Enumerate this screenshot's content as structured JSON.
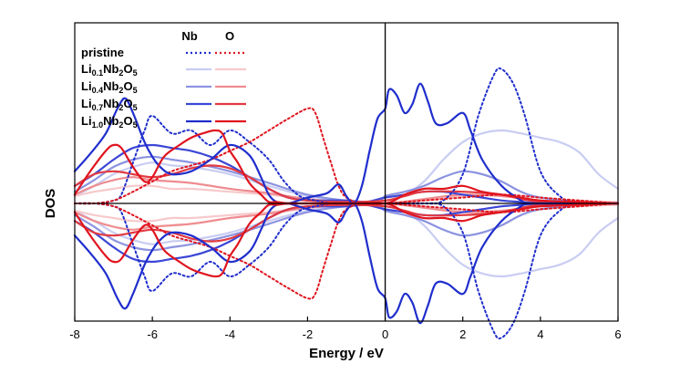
{
  "chart_data": {
    "type": "line",
    "xlabel": "Energy / eV",
    "ylabel": "DOS",
    "xlim": [
      -8,
      6
    ],
    "ylim": [
      -1.0,
      1.0
    ],
    "x_ticks": [
      "-8",
      "-6",
      "-4",
      "-2",
      "0",
      "2",
      "4",
      "6"
    ],
    "fermi_level": 0,
    "mirrored": "upper half = spin up, lower half = mirror image",
    "legend": {
      "column_headers": [
        "Nb",
        "O"
      ],
      "rows": [
        {
          "label_parts": [
            "pristine"
          ],
          "nb_style": "dotted",
          "o_style": "dotted"
        },
        {
          "label_parts": [
            "Li",
            "0.1",
            "Nb",
            "2",
            "O",
            "5"
          ],
          "nb_style": "solid",
          "o_style": "solid"
        },
        {
          "label_parts": [
            "Li",
            "0.4",
            "Nb",
            "2",
            "O",
            "5"
          ],
          "nb_style": "solid",
          "o_style": "solid"
        },
        {
          "label_parts": [
            "Li",
            "0.7",
            "Nb",
            "2",
            "O",
            "5"
          ],
          "nb_style": "solid",
          "o_style": "solid"
        },
        {
          "label_parts": [
            "Li",
            "1.0",
            "Nb",
            "2",
            "O",
            "5"
          ],
          "nb_style": "solid",
          "o_style": "solid"
        }
      ]
    },
    "colors": {
      "nb": [
        "#1f2ecc",
        "#c9cdf2",
        "#8c93e0",
        "#3b46d6",
        "#1f2ecc"
      ],
      "o": [
        "#e0141e",
        "#f7c9cb",
        "#ef8c90",
        "#e23a41",
        "#e0141e"
      ]
    },
    "series": [
      {
        "element": "Nb",
        "composition": 0,
        "style": "dotted",
        "x": [
          -8,
          -7.5,
          -7,
          -6.8,
          -6.5,
          -6.2,
          -6,
          -5.5,
          -5,
          -4.5,
          -4,
          -3.5,
          -3,
          -2.6,
          -2.2,
          -1.8,
          -1.4,
          -1,
          -0.5,
          0,
          0.5,
          1,
          1.5,
          2,
          2.4,
          2.8,
          3,
          3.3,
          3.6,
          4,
          4.5,
          5,
          6
        ],
        "y": [
          0,
          0,
          0.02,
          0.06,
          0.28,
          0.5,
          0.6,
          0.48,
          0.5,
          0.4,
          0.5,
          0.42,
          0.3,
          0.15,
          0.05,
          0.02,
          0,
          0,
          0,
          0,
          0,
          0,
          0.02,
          0.2,
          0.6,
          0.88,
          0.92,
          0.82,
          0.6,
          0.22,
          0.05,
          0,
          0
        ]
      },
      {
        "element": "O",
        "composition": 0,
        "style": "dotted",
        "x": [
          -8,
          -7.5,
          -7,
          -6.5,
          -6,
          -5.5,
          -5,
          -4.5,
          -4,
          -3.5,
          -3,
          -2.5,
          -2,
          -1.8,
          -1.6,
          -1.4,
          -1.2,
          -1,
          -0.6,
          0,
          1,
          2,
          3,
          4,
          5,
          6
        ],
        "y": [
          0,
          0,
          0.02,
          0.08,
          0.15,
          0.22,
          0.26,
          0.3,
          0.36,
          0.42,
          0.5,
          0.58,
          0.65,
          0.62,
          0.45,
          0.28,
          0.12,
          0.04,
          0,
          0,
          0.02,
          0.04,
          0.06,
          0.04,
          0.02,
          0
        ]
      },
      {
        "element": "Nb",
        "composition": 0.1,
        "style": "solid",
        "x": [
          -8,
          -7.5,
          -7,
          -6.5,
          -6,
          -5.5,
          -5,
          -4,
          -3,
          -2,
          -1,
          -0.2,
          0,
          0.5,
          1,
          1.5,
          2,
          2.5,
          3,
          3.5,
          4,
          4.5,
          5,
          5.5,
          6
        ],
        "y": [
          0.05,
          0.12,
          0.2,
          0.25,
          0.28,
          0.26,
          0.25,
          0.2,
          0.12,
          0.05,
          0.02,
          0.01,
          0.04,
          0.06,
          0.15,
          0.3,
          0.42,
          0.48,
          0.5,
          0.48,
          0.45,
          0.42,
          0.35,
          0.2,
          0.1
        ]
      },
      {
        "element": "O",
        "composition": 0.1,
        "style": "solid",
        "x": [
          -8,
          -7.5,
          -7,
          -6.5,
          -6,
          -5.5,
          -5,
          -4,
          -3,
          -2,
          -1,
          0,
          1,
          2,
          3,
          4,
          5,
          6
        ],
        "y": [
          0.05,
          0.08,
          0.1,
          0.12,
          0.12,
          0.1,
          0.1,
          0.08,
          0.06,
          0.03,
          0.01,
          0,
          0.02,
          0.05,
          0.06,
          0.04,
          0.02,
          0.01
        ]
      },
      {
        "element": "Nb",
        "composition": 0.4,
        "style": "solid",
        "x": [
          -8,
          -7.5,
          -7,
          -6.5,
          -6,
          -5.5,
          -5,
          -4,
          -3,
          -2,
          -1,
          -0.2,
          0,
          0.5,
          1,
          1.5,
          2,
          2.5,
          3,
          3.5,
          4,
          5,
          6
        ],
        "y": [
          0.08,
          0.16,
          0.25,
          0.3,
          0.32,
          0.3,
          0.28,
          0.22,
          0.14,
          0.06,
          0.02,
          0.01,
          0.05,
          0.08,
          0.12,
          0.18,
          0.22,
          0.2,
          0.15,
          0.08,
          0.04,
          0.01,
          0
        ]
      },
      {
        "element": "O",
        "composition": 0.4,
        "style": "solid",
        "x": [
          -8,
          -7.5,
          -7,
          -6.5,
          -6,
          -5,
          -4,
          -3,
          -2,
          -1,
          0,
          1,
          2,
          3,
          4,
          5,
          6
        ],
        "y": [
          0.06,
          0.12,
          0.16,
          0.18,
          0.16,
          0.14,
          0.1,
          0.07,
          0.03,
          0.01,
          0,
          0.03,
          0.06,
          0.05,
          0.02,
          0.01,
          0
        ]
      },
      {
        "element": "Nb",
        "composition": 0.7,
        "style": "solid",
        "x": [
          -8,
          -7.5,
          -7,
          -6.5,
          -6,
          -5.5,
          -5,
          -4.5,
          -4,
          -3.5,
          -3,
          -2.5,
          -2,
          -1.5,
          -1,
          -0.5,
          0,
          0.5,
          1,
          1.5,
          2,
          2.5,
          3,
          3.5,
          4,
          5,
          6
        ],
        "y": [
          0.12,
          0.2,
          0.3,
          0.38,
          0.4,
          0.38,
          0.36,
          0.32,
          0.26,
          0.18,
          0.1,
          0.04,
          0.02,
          0.02,
          0.02,
          0.01,
          0.04,
          0.06,
          0.08,
          0.08,
          0.06,
          0.04,
          0.02,
          0.01,
          0,
          0,
          0
        ]
      },
      {
        "element": "O",
        "composition": 0.7,
        "style": "solid",
        "x": [
          -8,
          -7.5,
          -7,
          -6.5,
          -6,
          -5.5,
          -5,
          -4.5,
          -4,
          -3.5,
          -3,
          -2.5,
          -2,
          -1,
          0,
          0.5,
          1,
          2,
          3,
          3.5,
          4,
          5,
          6
        ],
        "y": [
          0.12,
          0.2,
          0.22,
          0.2,
          0.18,
          0.2,
          0.24,
          0.26,
          0.24,
          0.18,
          0.1,
          0.04,
          0.02,
          0.01,
          0.02,
          0.05,
          0.08,
          0.08,
          0.06,
          0.03,
          0.01,
          0,
          0
        ]
      },
      {
        "element": "Nb",
        "composition": 1.0,
        "style": "solid",
        "x": [
          -8,
          -7.6,
          -7.2,
          -6.9,
          -6.7,
          -6.5,
          -6.2,
          -6,
          -5.8,
          -5.5,
          -5,
          -4.5,
          -4,
          -3.5,
          -3.2,
          -3,
          -2.8,
          -2.5,
          -2,
          -1.5,
          -1.2,
          -1,
          -0.8,
          -0.6,
          -0.4,
          -0.2,
          0,
          0.1,
          0.3,
          0.5,
          0.7,
          0.9,
          1.1,
          1.3,
          1.6,
          2,
          2.2,
          2.5,
          3,
          3.5,
          3.7,
          4,
          5,
          6
        ],
        "y": [
          0.22,
          0.34,
          0.48,
          0.65,
          0.72,
          0.62,
          0.42,
          0.32,
          0.25,
          0.2,
          0.22,
          0.3,
          0.4,
          0.33,
          0.18,
          0.06,
          0.01,
          0,
          0.04,
          0.07,
          0.13,
          0.05,
          0,
          0.12,
          0.36,
          0.58,
          0.65,
          0.78,
          0.74,
          0.62,
          0.68,
          0.82,
          0.7,
          0.55,
          0.55,
          0.62,
          0.5,
          0.3,
          0.12,
          0.02,
          0,
          0,
          0,
          0
        ]
      },
      {
        "element": "O",
        "composition": 1.0,
        "style": "solid",
        "x": [
          -8,
          -7.6,
          -7.2,
          -7,
          -6.8,
          -6.5,
          -6.2,
          -6,
          -5.7,
          -5.3,
          -5,
          -4.7,
          -4.4,
          -4.2,
          -4,
          -3.8,
          -3.5,
          -3.2,
          -3,
          -2.8,
          -2.5,
          -2,
          -1,
          0,
          0.5,
          1,
          1.5,
          2,
          2.5,
          3,
          3.5,
          4,
          5,
          6
        ],
        "y": [
          0.06,
          0.22,
          0.36,
          0.4,
          0.38,
          0.25,
          0.15,
          0.18,
          0.32,
          0.4,
          0.45,
          0.48,
          0.5,
          0.48,
          0.36,
          0.28,
          0.14,
          0.06,
          0.01,
          0.01,
          0,
          0,
          0,
          0,
          0.06,
          0.1,
          0.1,
          0.12,
          0.08,
          0.06,
          0.04,
          0.02,
          0.01,
          0
        ]
      }
    ]
  }
}
